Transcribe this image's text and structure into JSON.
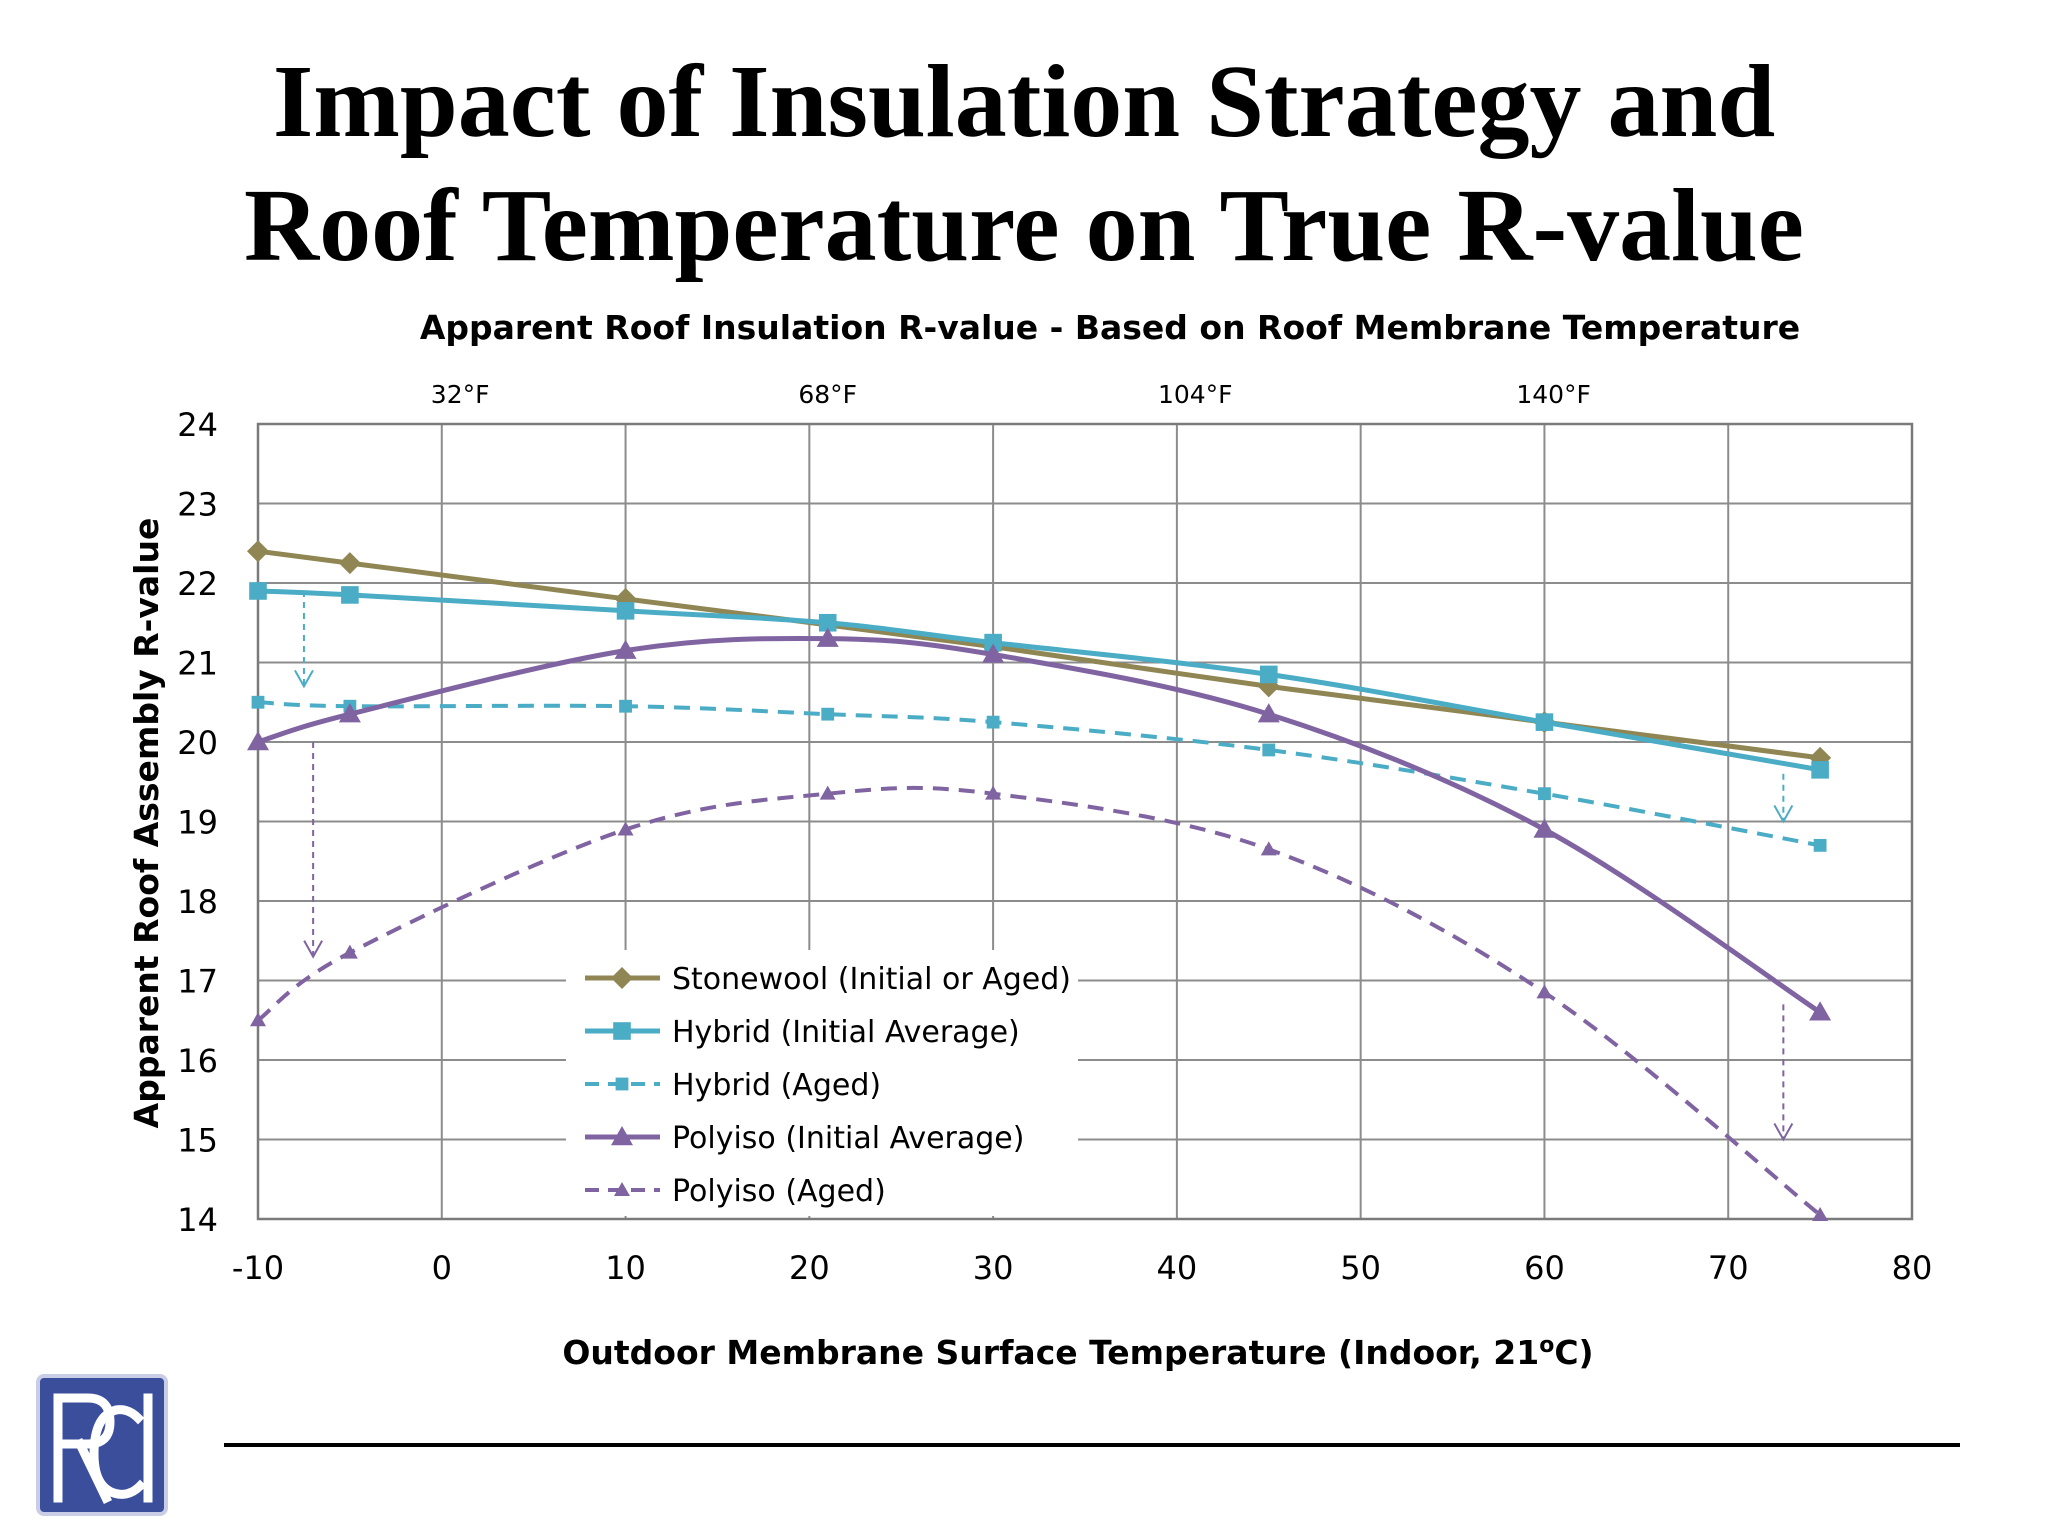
{
  "slide": {
    "title_line1": "Impact of Insulation Strategy and",
    "title_line2": "Roof Temperature on True R-value"
  },
  "logo": {
    "text": "RCI",
    "colors": {
      "fill": "#3a4e9c",
      "stroke": "#ffffff"
    }
  },
  "chart_data": {
    "type": "line",
    "title": "Apparent Roof Insulation R-value - Based on Roof Membrane Temperature",
    "xlabel": "Outdoor Membrane Surface Temperature (Indoor, 21",
    "xlabel_superscript": "o",
    "xlabel_suffix": "C)",
    "ylabel": "Apparent Roof  Assembly R-value",
    "xlim": [
      -10,
      80
    ],
    "ylim": [
      14,
      24
    ],
    "x_ticks": [
      "-10",
      "0",
      "10",
      "20",
      "30",
      "40",
      "50",
      "60",
      "70",
      "80"
    ],
    "y_ticks": [
      "14",
      "15",
      "16",
      "17",
      "18",
      "19",
      "20",
      "21",
      "22",
      "23",
      "24"
    ],
    "x_tick_values": [
      -10,
      0,
      10,
      20,
      30,
      40,
      50,
      60,
      70,
      80
    ],
    "y_tick_values": [
      14,
      15,
      16,
      17,
      18,
      19,
      20,
      21,
      22,
      23,
      24
    ],
    "top_axis": {
      "labels": [
        "32°F",
        "68°F",
        "104°F",
        "140°F"
      ],
      "values": [
        1,
        21,
        41,
        60.5
      ]
    },
    "grid": true,
    "legend_position": "lower-left inside plot",
    "series": [
      {
        "name": "Stonewool (Initial or Aged)",
        "color": "#8f8653",
        "marker": "diamond",
        "dashed": false,
        "x": [
          -10,
          -5,
          10,
          30,
          45,
          60,
          75
        ],
        "y": [
          22.4,
          22.25,
          21.8,
          21.2,
          20.7,
          20.25,
          19.8
        ]
      },
      {
        "name": "Hybrid (Initial Average)",
        "color": "#4aacc5",
        "marker": "square",
        "dashed": false,
        "x": [
          -10,
          -5,
          10,
          21,
          30,
          45,
          60,
          75
        ],
        "y": [
          21.9,
          21.85,
          21.65,
          21.5,
          21.25,
          20.85,
          20.25,
          19.65
        ]
      },
      {
        "name": "Hybrid (Aged)",
        "color": "#4aacc5",
        "marker": "square",
        "dashed": true,
        "x": [
          -10,
          -5,
          10,
          21,
          30,
          45,
          60,
          75
        ],
        "y": [
          20.5,
          20.45,
          20.45,
          20.35,
          20.25,
          19.9,
          19.35,
          18.7
        ]
      },
      {
        "name": "Polyiso (Initial Average)",
        "color": "#8064a2",
        "marker": "triangle",
        "dashed": false,
        "x": [
          -10,
          -5,
          10,
          21,
          30,
          45,
          60,
          75
        ],
        "y": [
          20.0,
          20.35,
          21.15,
          21.3,
          21.1,
          20.35,
          18.9,
          16.6
        ]
      },
      {
        "name": "Polyiso (Aged)",
        "color": "#8064a2",
        "marker": "triangle",
        "dashed": true,
        "x": [
          -10,
          -5,
          10,
          21,
          30,
          45,
          60,
          75
        ],
        "y": [
          16.5,
          17.35,
          18.9,
          19.35,
          19.35,
          18.65,
          16.85,
          14.05
        ]
      }
    ],
    "arrows": [
      {
        "color": "#4aacc5",
        "x": -7.5,
        "from": 21.9,
        "to": 20.7
      },
      {
        "color": "#8064a2",
        "x": -7,
        "from": 20.0,
        "to": 17.3
      },
      {
        "color": "#4aacc5",
        "x": 73,
        "from": 19.6,
        "to": 19.0
      },
      {
        "color": "#8064a2",
        "x": 73,
        "from": 16.7,
        "to": 15.0
      }
    ]
  }
}
